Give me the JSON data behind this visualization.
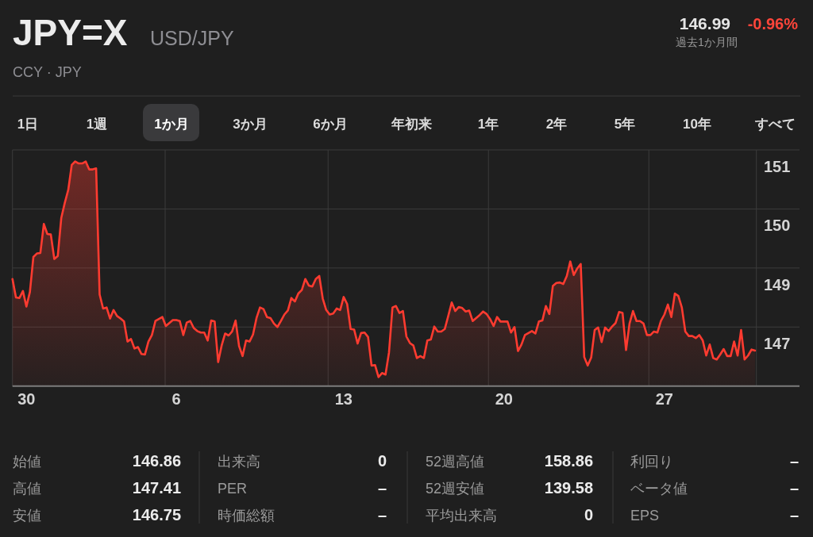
{
  "chart_data": {
    "type": "area",
    "title": "JPY=X",
    "subtitle": "USD/JPY",
    "color": "#ff3b30",
    "grid": true,
    "ylim": [
      146.28,
      151
    ],
    "yticks": [
      151,
      {
        "value": 149.82,
        "label": "150"
      },
      {
        "value": 148.64,
        "label": "149"
      },
      {
        "value": 147.46,
        "label": "147"
      }
    ],
    "categories": [
      null,
      null,
      null,
      null,
      "30",
      null,
      null,
      null,
      null,
      null,
      null,
      null,
      null,
      null,
      null,
      null,
      null,
      null,
      null,
      null,
      null,
      null,
      null,
      null,
      null,
      null,
      null,
      null,
      null,
      null,
      null,
      null,
      null,
      null,
      null,
      null,
      null,
      null,
      null,
      null,
      null,
      null,
      null,
      null,
      null,
      null,
      null,
      "6",
      null,
      null,
      null,
      null,
      null,
      null,
      null,
      null,
      null,
      null,
      null,
      null,
      null,
      null,
      null,
      null,
      null,
      null,
      null,
      null,
      null,
      null,
      null,
      null,
      null,
      null,
      null,
      null,
      null,
      null,
      null,
      null,
      null,
      null,
      null,
      null,
      null,
      null,
      null,
      null,
      null,
      null,
      null,
      null,
      null,
      null,
      null,
      "13",
      null,
      null,
      null,
      null,
      null,
      null,
      null,
      null,
      null,
      null,
      null,
      null,
      null,
      null,
      null,
      null,
      null,
      null,
      null,
      null,
      null,
      null,
      null,
      null,
      null,
      null,
      null,
      null,
      null,
      null,
      null,
      null,
      null,
      null,
      null,
      null,
      null,
      null,
      null,
      null,
      null,
      null,
      null,
      null,
      null,
      "20",
      null,
      null,
      null,
      null,
      null,
      null,
      null,
      null,
      null,
      null,
      null,
      null,
      null,
      null,
      null,
      null,
      null,
      null,
      null,
      null,
      null,
      null,
      null,
      null,
      null,
      null,
      null,
      null,
      null,
      null,
      null,
      null,
      null,
      null,
      null,
      null,
      null,
      null,
      null,
      null,
      null,
      null,
      null,
      null,
      null,
      "27",
      null,
      null,
      null,
      null,
      null,
      null,
      null,
      null,
      null,
      null,
      null,
      null,
      null,
      null,
      null,
      null,
      null,
      null,
      null,
      null,
      null,
      null,
      null,
      null,
      null,
      null
    ],
    "values": [
      148.42,
      148.05,
      148.04,
      148.18,
      147.87,
      148.16,
      148.86,
      148.93,
      148.94,
      149.52,
      149.32,
      149.31,
      148.82,
      148.88,
      149.64,
      149.94,
      150.2,
      150.7,
      150.77,
      150.73,
      150.73,
      150.77,
      150.61,
      150.61,
      150.63,
      148.11,
      147.83,
      147.85,
      147.63,
      147.8,
      147.68,
      147.63,
      147.57,
      147.17,
      147.22,
      147.03,
      147.06,
      146.92,
      146.91,
      147.17,
      147.3,
      147.58,
      147.62,
      147.66,
      147.48,
      147.54,
      147.6,
      147.6,
      147.58,
      147.3,
      147.55,
      147.58,
      147.44,
      147.38,
      147.35,
      147.35,
      147.19,
      147.59,
      147.57,
      146.76,
      147.09,
      147.33,
      147.29,
      147.37,
      147.59,
      147.08,
      146.88,
      147.19,
      147.17,
      147.31,
      147.64,
      147.85,
      147.82,
      147.66,
      147.64,
      147.53,
      147.46,
      147.58,
      147.71,
      147.79,
      148.04,
      147.97,
      148.13,
      148.2,
      148.42,
      148.29,
      148.27,
      148.42,
      148.48,
      148.03,
      147.8,
      147.71,
      147.73,
      147.83,
      147.8,
      148.06,
      147.92,
      147.42,
      147.41,
      147.13,
      147.34,
      147.35,
      147.26,
      146.69,
      146.7,
      146.46,
      146.54,
      146.51,
      146.95,
      147.85,
      147.88,
      147.74,
      147.78,
      147.27,
      147.14,
      147.09,
      146.84,
      146.88,
      146.84,
      147.19,
      147.21,
      147.47,
      147.37,
      147.37,
      147.42,
      147.68,
      147.95,
      147.78,
      147.86,
      147.84,
      147.77,
      147.79,
      147.58,
      147.64,
      147.7,
      147.77,
      147.72,
      147.62,
      147.48,
      147.66,
      147.57,
      147.57,
      147.57,
      147.35,
      147.46,
      146.98,
      147.11,
      147.3,
      147.34,
      147.38,
      147.33,
      147.57,
      147.59,
      147.88,
      147.72,
      148.28,
      148.34,
      148.35,
      148.32,
      148.48,
      148.77,
      148.5,
      148.63,
      148.72,
      146.86,
      146.69,
      146.85,
      147.4,
      147.45,
      147.16,
      147.45,
      147.38,
      147.47,
      147.54,
      147.76,
      147.74,
      147.0,
      147.53,
      147.78,
      147.58,
      147.58,
      147.53,
      147.3,
      147.3,
      147.37,
      147.35,
      147.58,
      147.71,
      147.91,
      147.66,
      148.13,
      148.08,
      147.85,
      147.37,
      147.28,
      147.28,
      147.24,
      147.3,
      147.19,
      146.89,
      147.11,
      146.84,
      146.81,
      146.91,
      147.02,
      146.88,
      146.88,
      147.17,
      146.89,
      147.4,
      146.81,
      146.89,
      147.01,
      146.99
    ],
    "annotations": [
      "CCY · JPY",
      "146.99",
      "-0.96%",
      "過去1か月間",
      "1日",
      "1週",
      "1か月",
      "3か月",
      "6か月",
      "年初来",
      "1年",
      "2年",
      "5年",
      "10年",
      "すべて",
      "始値",
      "146.86",
      "出来高",
      "0",
      "52週高値",
      "158.86",
      "利回り",
      "–",
      "高値",
      "147.41",
      "PER",
      "–",
      "52週安値",
      "139.58",
      "ベータ値",
      "–",
      "安値",
      "146.75",
      "時価総額",
      "–",
      "平均出来高",
      "0",
      "EPS",
      "–"
    ]
  }
}
